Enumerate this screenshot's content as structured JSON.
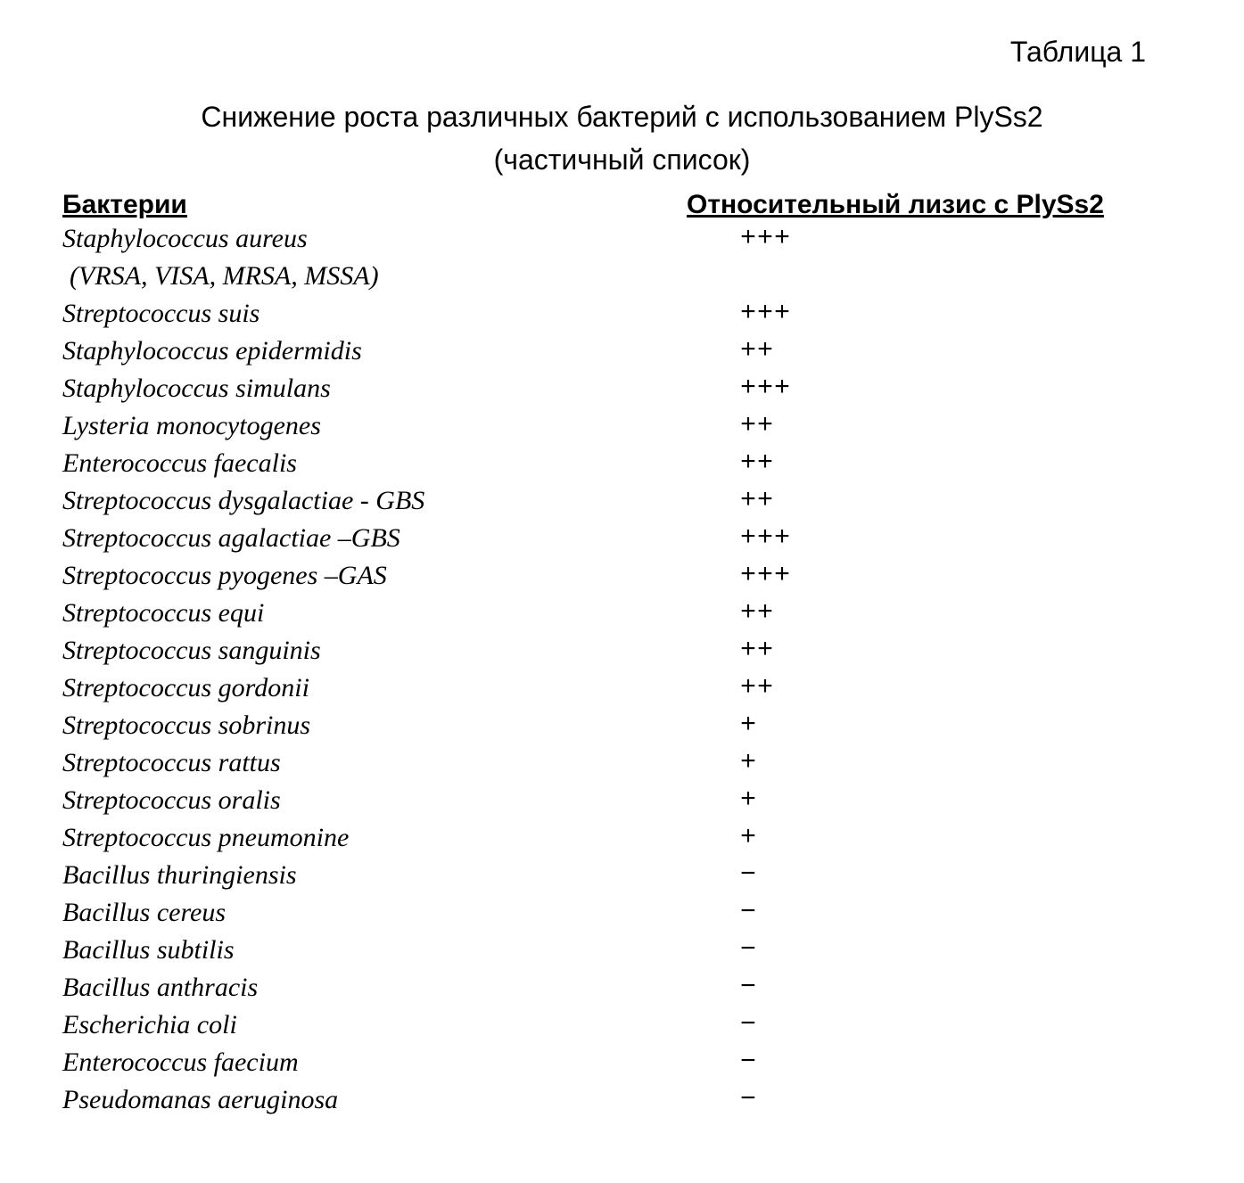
{
  "table_label": "Таблица 1",
  "title_line1": "Снижение роста различных бактерий с использованием PlySs2",
  "title_line2": "(частичный список)",
  "header_left": "Бактерии",
  "header_right": "Относительный лизис с PlySs2",
  "rows": [
    {
      "name": "Staphylococcus aureus",
      "sub": " (VRSA, VISA, MRSA, MSSA)",
      "lysis": "+++"
    },
    {
      "name": "Streptococcus suis",
      "lysis": "+++"
    },
    {
      "name": "Staphylococcus epidermidis",
      "lysis": "++"
    },
    {
      "name": "Staphylococcus simulans",
      "lysis": "+++"
    },
    {
      "name": "Lysteria monocytogenes",
      "lysis": "++"
    },
    {
      "name": "Enterococcus faecalis",
      "lysis": "++"
    },
    {
      "name": "Streptococcus dysgalactiae - GBS",
      "lysis": "++"
    },
    {
      "name": "Streptococcus agalactiae –GBS",
      "lysis": "+++"
    },
    {
      "name": "Streptococcus pyogenes –GAS",
      "lysis": "+++"
    },
    {
      "name": "Streptococcus equi",
      "lysis": "++"
    },
    {
      "name": "Streptococcus sanguinis",
      "lysis": "++"
    },
    {
      "name": "Streptococcus gordonii",
      "lysis": "++"
    },
    {
      "name": "Streptococcus sobrinus",
      "lysis": "+"
    },
    {
      "name": "Streptococcus rattus",
      "lysis": "+"
    },
    {
      "name": "Streptococcus oralis",
      "lysis": "+"
    },
    {
      "name": "Streptococcus pneumonine",
      "lysis": "+"
    },
    {
      "name": "Bacillus thuringiensis",
      "lysis": "−"
    },
    {
      "name": "Bacillus cereus",
      "lysis": "−"
    },
    {
      "name": "Bacillus subtilis",
      "lysis": "−"
    },
    {
      "name": "Bacillus anthracis",
      "lysis": "−"
    },
    {
      "name": "Escherichia coli",
      "lysis": "−"
    },
    {
      "name": "Enterococcus faecium",
      "lysis": "−"
    },
    {
      "name": "Pseudomanas aeruginosa",
      "lysis": "−"
    }
  ]
}
